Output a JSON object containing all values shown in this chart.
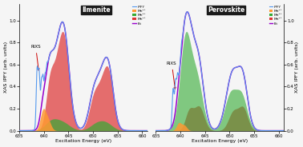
{
  "xlim": [
    635,
    661
  ],
  "xlabel": "Excitation Energy (eV)",
  "ylabel_left": "XAS IPFY (arb. units)",
  "ylabel_right": "XAS IPFY (arb. units)",
  "title_left": "Ilmenite",
  "title_right": "Perovskite",
  "rixs_label": "RIXS",
  "rixs_arrow_color": "#cc0000",
  "color_ipfy": "#5599ee",
  "color_mn2": "#ff9933",
  "color_mn3": "#33aa33",
  "color_mn4": "#dd3333",
  "color_fit": "#9900cc",
  "background_color": "#f5f5f5"
}
